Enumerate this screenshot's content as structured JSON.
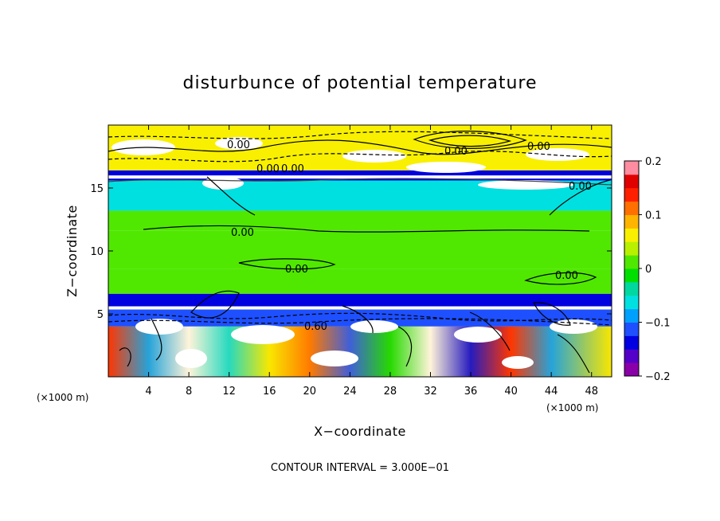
{
  "chart_data": {
    "type": "heatmap",
    "title": "disturbunce of potential temperature",
    "xlabel": "X−coordinate",
    "ylabel": "Z−coordinate",
    "x_unit": "(×1000 m)",
    "y_unit": "(×1000 m)",
    "xlim": [
      0,
      50
    ],
    "ylim": [
      0,
      20
    ],
    "x_ticks": [
      4,
      8,
      12,
      16,
      20,
      24,
      28,
      32,
      36,
      40,
      44,
      48
    ],
    "y_ticks": [
      5,
      10,
      15
    ],
    "colorbar": {
      "ticks": [
        0.2,
        0.1,
        0,
        -0.1,
        -0.2
      ],
      "tick_labels": [
        "0.2",
        "0.1",
        "0",
        "−0.1",
        "−0.2"
      ],
      "range": [
        -0.2,
        0.2
      ],
      "colors": [
        "#8a00a8",
        "#5500c8",
        "#0000e0",
        "#1e50ff",
        "#00a0ff",
        "#00e0e0",
        "#00d8a0",
        "#00e000",
        "#50e800",
        "#b8f000",
        "#f8f000",
        "#ffb400",
        "#ff7000",
        "#ff2000",
        "#e00000",
        "#ff8ca0"
      ]
    },
    "contour_interval": "CONTOUR INTERVAL = 3.000E−01",
    "contour_labels": [
      "0.00",
      "0.00",
      "0.00",
      "0.00",
      "0.00",
      "0.00",
      "0.00",
      "0.00",
      "0.00",
      "0.60"
    ],
    "bands": [
      {
        "z_from": 0,
        "z_to": 4.0,
        "value": 0.08
      },
      {
        "z_from": 4.0,
        "z_to": 5.6,
        "value": -0.12
      },
      {
        "z_from": 5.6,
        "z_to": 6.6,
        "value": -0.15
      },
      {
        "z_from": 6.6,
        "z_to": 8.6,
        "value": 0.01
      },
      {
        "z_from": 8.6,
        "z_to": 11.6,
        "value": 0.0
      },
      {
        "z_from": 11.6,
        "z_to": 13.2,
        "value": 0.02
      },
      {
        "z_from": 13.2,
        "z_to": 15.6,
        "value": -0.06
      },
      {
        "z_from": 15.6,
        "z_to": 16.4,
        "value": -0.14
      },
      {
        "z_from": 16.4,
        "z_to": 20,
        "value": 0.05
      }
    ]
  }
}
